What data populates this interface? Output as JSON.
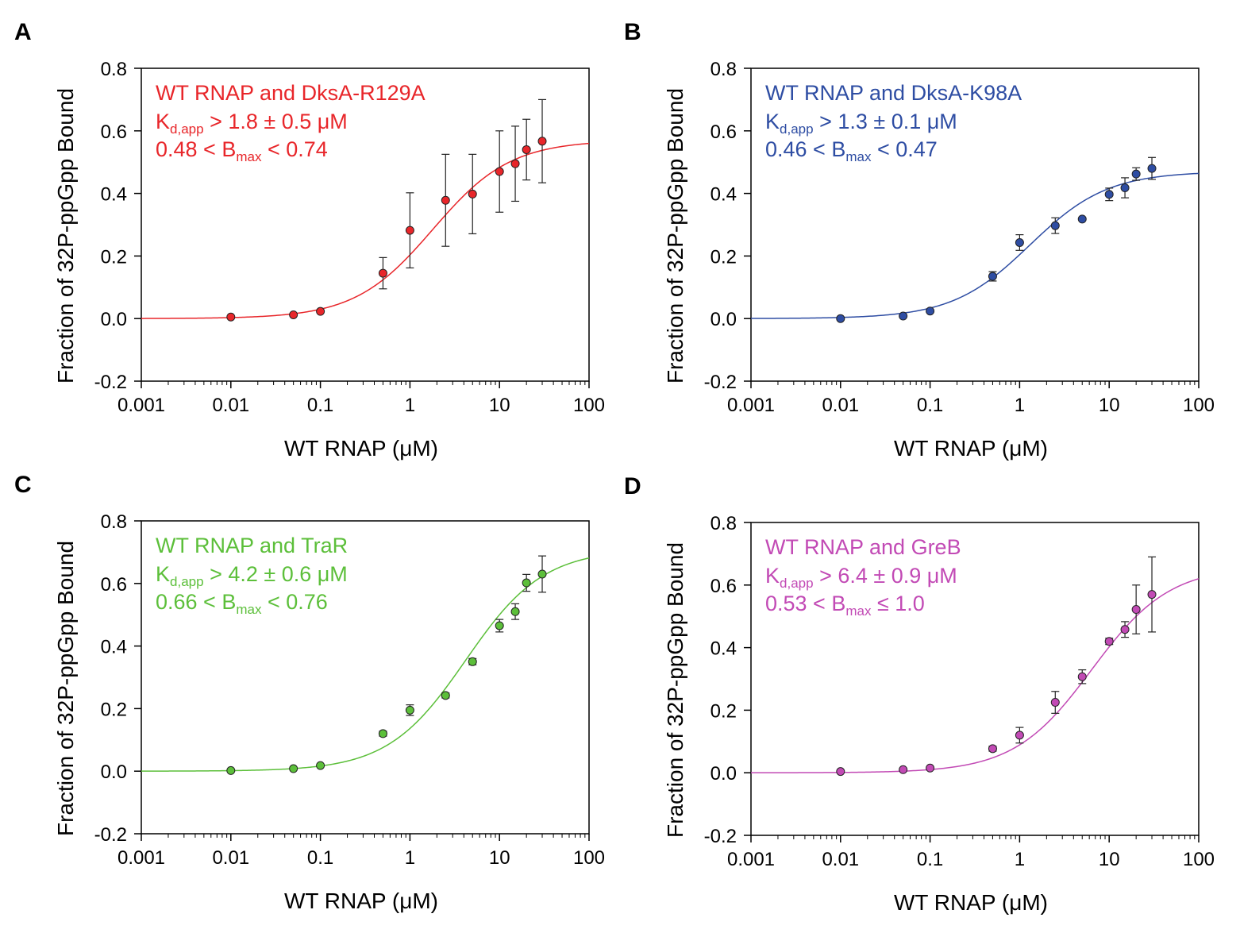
{
  "chart_data": [
    {
      "panel": "A",
      "type": "scatter",
      "color": "#e8262a",
      "title": "WT RNAP and DksA-R129A",
      "kd_label": "K",
      "kd_sub": "d,app",
      "kd_value": " > 1.8 ± 0.5 μM",
      "bmax_pre": "0.48 < B",
      "bmax_sub": "max",
      "bmax_post": " < 0.74",
      "xlabel": "WT RNAP (μM)",
      "ylabel": "Fraction of 32P-ppGpp Bound",
      "xscale": "log",
      "xlim": [
        0.001,
        100
      ],
      "ylim": [
        -0.2,
        0.8
      ],
      "xticks": [
        "0.001",
        "0.01",
        "0.1",
        "1",
        "10",
        "100"
      ],
      "yticks": [
        "-0.2",
        "0.0",
        "0.2",
        "0.4",
        "0.6",
        "0.8"
      ],
      "x": [
        0.01,
        0.05,
        0.1,
        0.5,
        1,
        2.5,
        5,
        10,
        15,
        20,
        30
      ],
      "y": [
        0.005,
        0.012,
        0.023,
        0.145,
        0.282,
        0.378,
        0.398,
        0.47,
        0.495,
        0.54,
        0.567
      ],
      "err": [
        0.004,
        0.005,
        0.006,
        0.05,
        0.12,
        0.147,
        0.127,
        0.13,
        0.12,
        0.097,
        0.133
      ],
      "fit": {
        "model": "hyperbolic",
        "kd": 1.8,
        "bmax": 0.57
      }
    },
    {
      "panel": "B",
      "type": "scatter",
      "color": "#2e4da3",
      "title": "WT RNAP and DksA-K98A",
      "kd_label": "K",
      "kd_sub": "d,app",
      "kd_value": " > 1.3 ± 0.1 μM",
      "bmax_pre": "0.46 < B",
      "bmax_sub": "max",
      "bmax_post": " < 0.47",
      "xlabel": "WT RNAP (μM)",
      "ylabel": "Fraction of 32P-ppGpp Bound",
      "xscale": "log",
      "xlim": [
        0.001,
        100
      ],
      "ylim": [
        -0.2,
        0.8
      ],
      "xticks": [
        "0.001",
        "0.01",
        "0.1",
        "1",
        "10",
        "100"
      ],
      "yticks": [
        "-0.2",
        "0.0",
        "0.2",
        "0.4",
        "0.6",
        "0.8"
      ],
      "x": [
        0.01,
        0.05,
        0.1,
        0.5,
        1,
        2.5,
        5,
        10,
        15,
        20,
        30
      ],
      "y": [
        0.0,
        0.008,
        0.024,
        0.135,
        0.243,
        0.297,
        0.318,
        0.397,
        0.418,
        0.462,
        0.48
      ],
      "err": [
        0.003,
        0.004,
        0.005,
        0.015,
        0.025,
        0.025,
        0.006,
        0.02,
        0.032,
        0.02,
        0.035
      ],
      "fit": {
        "model": "hyperbolic",
        "kd": 1.3,
        "bmax": 0.47
      }
    },
    {
      "panel": "C",
      "type": "scatter",
      "color": "#5cbf3a",
      "title": "WT RNAP and TraR",
      "kd_label": "K",
      "kd_sub": "d,app",
      "kd_value": " > 4.2 ± 0.6 μM",
      "bmax_pre": "0.66 < B",
      "bmax_sub": "max",
      "bmax_post": " < 0.76",
      "xlabel": "WT RNAP (μM)",
      "ylabel": "Fraction of 32P-ppGpp Bound",
      "xscale": "log",
      "xlim": [
        0.001,
        100
      ],
      "ylim": [
        -0.2,
        0.8
      ],
      "xticks": [
        "0.001",
        "0.01",
        "0.1",
        "1",
        "10",
        "100"
      ],
      "yticks": [
        "-0.2",
        "0.0",
        "0.2",
        "0.4",
        "0.6",
        "0.8"
      ],
      "x": [
        0.01,
        0.05,
        0.1,
        0.5,
        1,
        2.5,
        5,
        10,
        15,
        20,
        30
      ],
      "y": [
        0.002,
        0.008,
        0.018,
        0.12,
        0.195,
        0.242,
        0.35,
        0.465,
        0.51,
        0.602,
        0.63
      ],
      "err": [
        0.003,
        0.004,
        0.005,
        0.008,
        0.017,
        0.008,
        0.01,
        0.02,
        0.025,
        0.027,
        0.058
      ],
      "fit": {
        "model": "hyperbolic",
        "kd": 4.2,
        "bmax": 0.71
      }
    },
    {
      "panel": "D",
      "type": "scatter",
      "color": "#c24ab5",
      "title": "WT RNAP and GreB",
      "kd_label": "K",
      "kd_sub": "d,app",
      "kd_value": " > 6.4 ± 0.9 μM",
      "bmax_pre": "0.53 < B",
      "bmax_sub": "max",
      "bmax_post": " ≤ 1.0",
      "xlabel": "WT RNAP (μM)",
      "ylabel": "Fraction of 32P-ppGpp Bound",
      "xscale": "log",
      "xlim": [
        0.001,
        100
      ],
      "ylim": [
        -0.2,
        0.8
      ],
      "xticks": [
        "0.001",
        "0.01",
        "0.1",
        "1",
        "10",
        "100"
      ],
      "yticks": [
        "-0.2",
        "0.0",
        "0.2",
        "0.4",
        "0.6",
        "0.8"
      ],
      "x": [
        0.01,
        0.05,
        0.1,
        0.5,
        1,
        2.5,
        5,
        10,
        15,
        20,
        30
      ],
      "y": [
        0.004,
        0.01,
        0.015,
        0.077,
        0.12,
        0.225,
        0.307,
        0.42,
        0.458,
        0.522,
        0.57
      ],
      "err": [
        0.004,
        0.004,
        0.005,
        0.008,
        0.025,
        0.035,
        0.022,
        0.01,
        0.025,
        0.078,
        0.12
      ],
      "fit": {
        "model": "hyperbolic",
        "kd": 6.4,
        "bmax": 0.66
      }
    }
  ]
}
